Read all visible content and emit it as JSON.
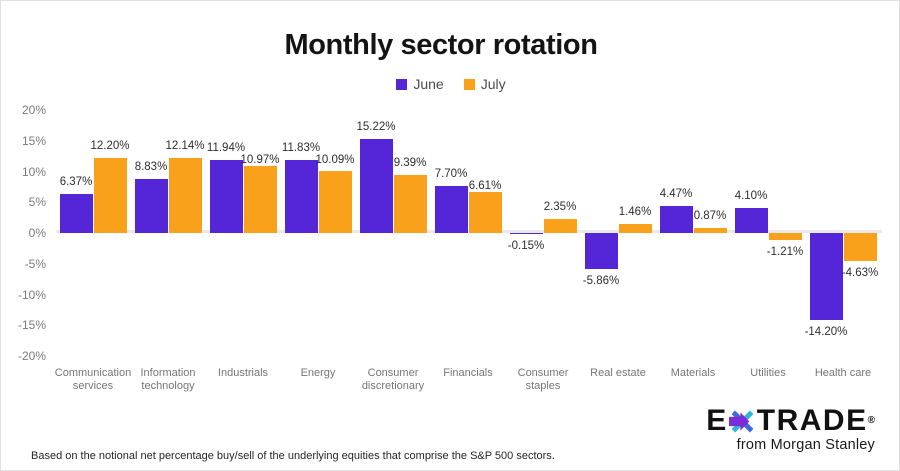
{
  "title": "Monthly sector rotation",
  "legend": {
    "items": [
      {
        "label": "June",
        "color": "#5426D8"
      },
      {
        "label": "July",
        "color": "#FAA11C"
      }
    ]
  },
  "footnote": "Based on the notional net percentage buy/sell of the underlying equities that comprise the S&P 500 sectors.",
  "logo": {
    "pre": "E",
    "post": "TRADE",
    "reg": "®",
    "tagline": "from Morgan Stanley",
    "star_colors": {
      "purple": "#7D2BD9",
      "teal": "#2FB7D8",
      "blue": "#3E6BD9"
    }
  },
  "chart_data": {
    "type": "bar",
    "title": "Monthly sector rotation",
    "xlabel": "",
    "ylabel": "",
    "ylim": [
      -20,
      20
    ],
    "grid": false,
    "legend_position": "top",
    "categories": [
      "Communication services",
      "Information technology",
      "Industrials",
      "Energy",
      "Consumer discretionary",
      "Financials",
      "Consumer staples",
      "Real estate",
      "Materials",
      "Utilities",
      "Health care"
    ],
    "series": [
      {
        "name": "June",
        "color": "#5426D8",
        "values": [
          6.37,
          8.83,
          11.94,
          11.83,
          15.22,
          7.7,
          -0.15,
          -5.86,
          4.47,
          4.1,
          -14.2
        ],
        "labels": [
          "6.37%",
          "8.83%",
          "11.94%",
          "11.83%",
          "15.22%",
          "7.70%",
          "-0.15%",
          "-5.86%",
          "4.47%",
          "4.10%",
          "-14.20%"
        ]
      },
      {
        "name": "July",
        "color": "#FAA11C",
        "values": [
          12.2,
          12.14,
          10.97,
          10.09,
          9.39,
          6.61,
          2.35,
          1.46,
          0.87,
          -1.21,
          -4.63
        ],
        "labels": [
          "12.20%",
          "12.14%",
          "10.97%",
          "10.09%",
          "9.39%",
          "6.61%",
          "2.35%",
          "1.46%",
          "0.87%",
          "-1.21%",
          "-4.63%"
        ]
      }
    ],
    "y_ticks": [
      {
        "v": 20,
        "label": "20%"
      },
      {
        "v": 15,
        "label": "15%"
      },
      {
        "v": 10,
        "label": "10%"
      },
      {
        "v": 5,
        "label": "5%"
      },
      {
        "v": 0,
        "label": "0%"
      },
      {
        "v": -5,
        "label": "-5%"
      },
      {
        "v": -10,
        "label": "-10%"
      },
      {
        "v": -15,
        "label": "-15%"
      },
      {
        "v": -20,
        "label": "-20%"
      }
    ]
  }
}
